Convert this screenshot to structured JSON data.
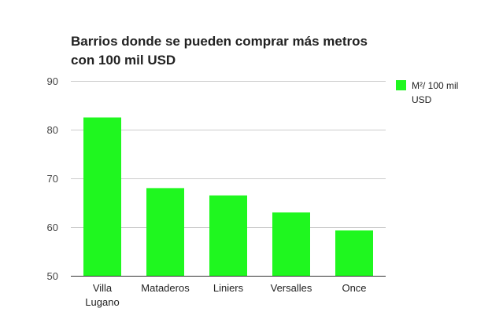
{
  "chart_data": {
    "type": "bar",
    "title": "Barrios donde se pueden comprar más metros con 100 mil USD",
    "title_lines": [
      "Barrios donde se pueden comprar más metros",
      "con 100 mil USD"
    ],
    "categories": [
      "Villa Lugano",
      "Mataderos",
      "Liniers",
      "Versalles",
      "Once"
    ],
    "category_lines": [
      [
        "Villa",
        "Lugano"
      ],
      [
        "Mataderos"
      ],
      [
        "Liniers"
      ],
      [
        "Versalles"
      ],
      [
        "Once"
      ]
    ],
    "series": [
      {
        "name": "M²/ 100 mil USD",
        "name_lines": [
          "M²/ 100 mil",
          "USD"
        ],
        "color": "#1ff71f",
        "values": [
          82.5,
          68,
          66.5,
          63,
          59.3
        ]
      }
    ],
    "yticks": [
      50,
      60,
      70,
      80,
      90
    ],
    "ylim": [
      50,
      90
    ],
    "xlabel": "",
    "ylabel": "",
    "grid": true,
    "legend_position": "right",
    "gridline_color": "#cccccc",
    "axis_color": "#333333"
  }
}
